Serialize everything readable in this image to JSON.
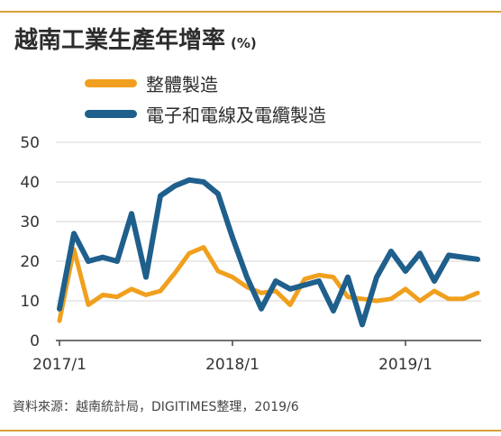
{
  "title": "越南工業生產年增率",
  "unit": "(%)",
  "source": "資料來源：越南統計局，DIGITIMES整理，2019/6",
  "colors": {
    "accent": "#d7a13a",
    "orange": "#f0a01e",
    "blue": "#1f5f8c"
  },
  "chart_data": {
    "type": "line",
    "title": "越南工業生產年增率",
    "xlabel": "",
    "ylabel": "",
    "ylim": [
      0,
      50
    ],
    "yticks": [
      0,
      10,
      20,
      30,
      40,
      50
    ],
    "grid": "horizontal",
    "legend_position": "top-left",
    "x": [
      "2017/1",
      "2017/2",
      "2017/3",
      "2017/4",
      "2017/5",
      "2017/6",
      "2017/7",
      "2017/8",
      "2017/9",
      "2017/10",
      "2017/11",
      "2017/12",
      "2018/1",
      "2018/2",
      "2018/3",
      "2018/4",
      "2018/5",
      "2018/6",
      "2018/7",
      "2018/8",
      "2018/9",
      "2018/10",
      "2018/11",
      "2018/12",
      "2019/1",
      "2019/2",
      "2019/3",
      "2019/4",
      "2019/5",
      "2019/6"
    ],
    "xtick_labels": [
      "2017/1",
      "2018/1",
      "2019/1"
    ],
    "series": [
      {
        "name": "整體製造",
        "color": "#f0a01e",
        "values": [
          5,
          23,
          9,
          11.5,
          11,
          13,
          11.5,
          12.5,
          17,
          22,
          23.5,
          17.5,
          16,
          13.5,
          12,
          12.5,
          9,
          15.5,
          16.5,
          16,
          11,
          10.5,
          10,
          10.5,
          13,
          10,
          12.5,
          10.5,
          10.5,
          12
        ]
      },
      {
        "name": "電子和電線及電纜製造",
        "color": "#1f5f8c",
        "values": [
          8,
          27,
          20,
          21,
          20,
          32,
          16,
          36.5,
          39,
          40.5,
          40,
          37,
          26,
          16,
          8,
          15,
          13,
          14,
          15,
          7.5,
          16,
          4,
          16,
          22.5,
          17.5,
          22,
          15,
          21.5,
          21,
          20.5
        ]
      }
    ]
  }
}
